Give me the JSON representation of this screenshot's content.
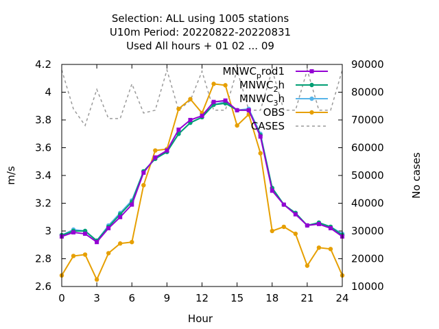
{
  "chart_data": {
    "type": "line",
    "title_lines": [
      "Selection: ALL using  1005 stations",
      "U10m   Period: 20220822-20220831",
      "Used  All hours + 01 02 ... 09"
    ],
    "xlabel": "Hour",
    "ylabel": "m/s",
    "y2label": "No cases",
    "xlim": [
      0,
      24
    ],
    "ylim": [
      2.6,
      4.2
    ],
    "y2lim": [
      10000,
      90000
    ],
    "x_ticks": [
      "0",
      "3",
      "6",
      "9",
      "12",
      "15",
      "18",
      "21",
      "24"
    ],
    "y_ticks": [
      "2.6",
      "2.8",
      "3",
      "3.2",
      "3.4",
      "3.6",
      "3.8",
      "4",
      "4.2"
    ],
    "y2_ticks": [
      "10000",
      "20000",
      "30000",
      "40000",
      "50000",
      "60000",
      "70000",
      "80000",
      "90000"
    ],
    "x": [
      0,
      1,
      2,
      3,
      4,
      5,
      6,
      7,
      8,
      9,
      10,
      11,
      12,
      13,
      14,
      15,
      16,
      17,
      18,
      19,
      20,
      21,
      22,
      23,
      24
    ],
    "series": [
      {
        "name": "MNWC_prod1",
        "label_base": "MNWC",
        "label_sub": "p",
        "label_rest": "rod1",
        "color": "#9400d3",
        "marker": "square",
        "axis": "y",
        "values": [
          2.96,
          2.99,
          2.98,
          2.92,
          3.02,
          3.1,
          3.19,
          3.42,
          3.53,
          3.58,
          3.73,
          3.8,
          3.83,
          3.93,
          3.94,
          3.87,
          3.87,
          3.68,
          3.29,
          3.19,
          3.12,
          3.04,
          3.05,
          3.02,
          2.96
        ]
      },
      {
        "name": "MNWC_2h",
        "label_base": "MNWC",
        "label_sub": "2",
        "label_rest": "h",
        "color": "#009e73",
        "marker": "circle",
        "axis": "y",
        "values": [
          2.97,
          3.0,
          3.0,
          2.93,
          3.03,
          3.12,
          3.21,
          3.43,
          3.52,
          3.57,
          3.7,
          3.78,
          3.82,
          3.91,
          3.92,
          3.87,
          3.87,
          3.69,
          3.31,
          3.19,
          3.13,
          3.04,
          3.06,
          3.03,
          2.97
        ]
      },
      {
        "name": "MNWC_3h",
        "label_base": "MNWC",
        "label_sub": "3",
        "label_rest": "h",
        "color": "#56b4e9",
        "marker": "circle",
        "axis": "y",
        "values": [
          2.97,
          3.01,
          3.0,
          2.93,
          3.04,
          3.13,
          3.22,
          3.43,
          3.52,
          3.57,
          3.7,
          3.78,
          3.82,
          3.91,
          3.93,
          3.87,
          3.88,
          3.7,
          3.31,
          3.19,
          3.13,
          3.04,
          3.06,
          3.03,
          2.98
        ]
      },
      {
        "name": "OBS",
        "color": "#e69f00",
        "marker": "circle",
        "axis": "y",
        "values": [
          2.68,
          2.82,
          2.83,
          2.65,
          2.84,
          2.91,
          2.92,
          3.33,
          3.58,
          3.59,
          3.88,
          3.95,
          3.85,
          4.06,
          4.05,
          3.76,
          3.84,
          3.56,
          3.0,
          3.03,
          2.98,
          2.75,
          2.88,
          2.87,
          2.68
        ]
      },
      {
        "name": "CASES",
        "color": "#999999",
        "marker": "none",
        "dashed": true,
        "axis": "y2",
        "values": [
          88000,
          74000,
          68000,
          81000,
          70500,
          70500,
          83000,
          72500,
          73500,
          88000,
          73500,
          77000,
          87500,
          73500,
          73500,
          88000,
          73500,
          73500,
          88000,
          73500,
          73500,
          88000,
          73500,
          73500,
          88000
        ]
      }
    ],
    "legend_position": "top-right",
    "grid": false
  }
}
